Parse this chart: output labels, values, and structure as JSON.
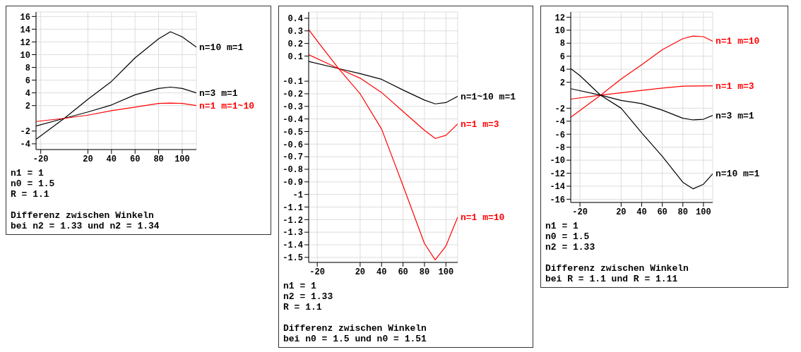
{
  "chart_data": [
    {
      "type": "line",
      "xlim": [
        -24,
        112
      ],
      "xticks": [
        -20,
        20,
        40,
        60,
        80,
        100
      ],
      "ylim": [
        -4.9,
        16.7
      ],
      "yticks": [
        -4,
        -2,
        2,
        4,
        6,
        8,
        10,
        12,
        14,
        16
      ],
      "grid": true,
      "marker": "none",
      "annotations": [
        "n1 = 1",
        "n0 = 1.5",
        "R = 1.1",
        "Differenz zwischen Winkeln",
        "bei n2 = 1.33 und n2 = 1.34"
      ],
      "series": [
        {
          "name": "n=10 m=1",
          "color": "#000000",
          "x": [
            -24,
            0,
            20,
            40,
            60,
            80,
            90,
            100,
            112
          ],
          "values": [
            -3.3,
            0,
            3.0,
            5.8,
            9.5,
            12.5,
            13.6,
            12.8,
            11.2
          ]
        },
        {
          "name": "n=3 m=1",
          "color": "#000000",
          "x": [
            -24,
            0,
            20,
            40,
            60,
            80,
            90,
            100,
            112
          ],
          "values": [
            -1.2,
            0,
            1.0,
            2.1,
            3.7,
            4.7,
            4.9,
            4.7,
            4.0
          ]
        },
        {
          "name": "n=1 m=1~10",
          "color": "#ff0000",
          "x": [
            -24,
            0,
            20,
            40,
            60,
            80,
            90,
            100,
            112
          ],
          "values": [
            -0.5,
            0,
            0.5,
            1.2,
            1.75,
            2.35,
            2.4,
            2.35,
            2.0
          ]
        }
      ]
    },
    {
      "type": "line",
      "xlim": [
        -28,
        111
      ],
      "xticks": [
        -20,
        20,
        40,
        60,
        80,
        100
      ],
      "ylim": [
        -1.54,
        0.45
      ],
      "yticks": [
        -1.5,
        -1.4,
        -1.3,
        -1.2,
        -1.1,
        -1,
        -0.9,
        -0.8,
        -0.7,
        -0.6,
        -0.5,
        -0.4,
        -0.3,
        -0.2,
        -0.1,
        0.1,
        0.2,
        0.3,
        0.4
      ],
      "grid": true,
      "marker": "none",
      "annotations": [
        "n1 = 1",
        "n2 = 1.33",
        "R = 1.1",
        "Differenz zwischen Winkeln",
        "bei n0 = 1.5 und n0 = 1.51"
      ],
      "series": [
        {
          "name": "n=1~10 m=1",
          "color": "#000000",
          "x": [
            -28,
            0,
            20,
            40,
            60,
            80,
            90,
            100,
            111
          ],
          "values": [
            0.057,
            0,
            -0.04,
            -0.085,
            -0.17,
            -0.25,
            -0.28,
            -0.27,
            -0.22
          ]
        },
        {
          "name": "n=1 m=3",
          "color": "#ff0000",
          "x": [
            -28,
            0,
            20,
            40,
            60,
            80,
            90,
            100,
            111
          ],
          "values": [
            0.11,
            0,
            -0.076,
            -0.19,
            -0.34,
            -0.49,
            -0.555,
            -0.53,
            -0.44
          ]
        },
        {
          "name": "n=1 m=10",
          "color": "#ff0000",
          "x": [
            -28,
            -20,
            0,
            20,
            40,
            60,
            80,
            90,
            100,
            111
          ],
          "values": [
            0.31,
            0.22,
            0,
            -0.2,
            -0.48,
            -0.93,
            -1.39,
            -1.52,
            -1.41,
            -1.18
          ]
        }
      ]
    },
    {
      "type": "line",
      "xlim": [
        -29,
        109
      ],
      "xticks": [
        -20,
        20,
        40,
        60,
        80,
        100
      ],
      "ylim": [
        -16.5,
        12.8
      ],
      "yticks": [
        -16,
        -14,
        -12,
        -10,
        -8,
        -6,
        -4,
        -2,
        2,
        4,
        6,
        8,
        10,
        12
      ],
      "grid": true,
      "marker": "none",
      "annotations": [
        "n1 = 1",
        "n0 = 1.5",
        "n2 = 1.33",
        "Differenz zwischen Winkeln",
        "bei R = 1.1 und R = 1.11"
      ],
      "series": [
        {
          "name": "n=1 m=10",
          "color": "#ff0000",
          "x": [
            -29,
            0,
            20,
            40,
            60,
            80,
            90,
            100,
            109
          ],
          "values": [
            -3.4,
            0,
            2.5,
            4.7,
            7.0,
            8.7,
            9.1,
            9.0,
            8.3
          ]
        },
        {
          "name": "n=1 m=3",
          "color": "#ff0000",
          "x": [
            -29,
            0,
            40,
            60,
            80,
            109
          ],
          "values": [
            -0.6,
            0,
            0.75,
            1.1,
            1.4,
            1.45
          ]
        },
        {
          "name": "n=3 m=1",
          "color": "#000000",
          "x": [
            -29,
            0,
            20,
            40,
            60,
            80,
            90,
            100,
            109
          ],
          "values": [
            1.0,
            0,
            -0.8,
            -1.3,
            -2.3,
            -3.55,
            -3.8,
            -3.7,
            -3.1
          ]
        },
        {
          "name": "n=10 m=1",
          "color": "#000000",
          "x": [
            -29,
            -20,
            0,
            20,
            40,
            60,
            80,
            90,
            100,
            109
          ],
          "values": [
            4.1,
            3.0,
            0,
            -2.0,
            -5.8,
            -9.4,
            -13.4,
            -14.4,
            -13.7,
            -12.1
          ]
        }
      ]
    }
  ]
}
